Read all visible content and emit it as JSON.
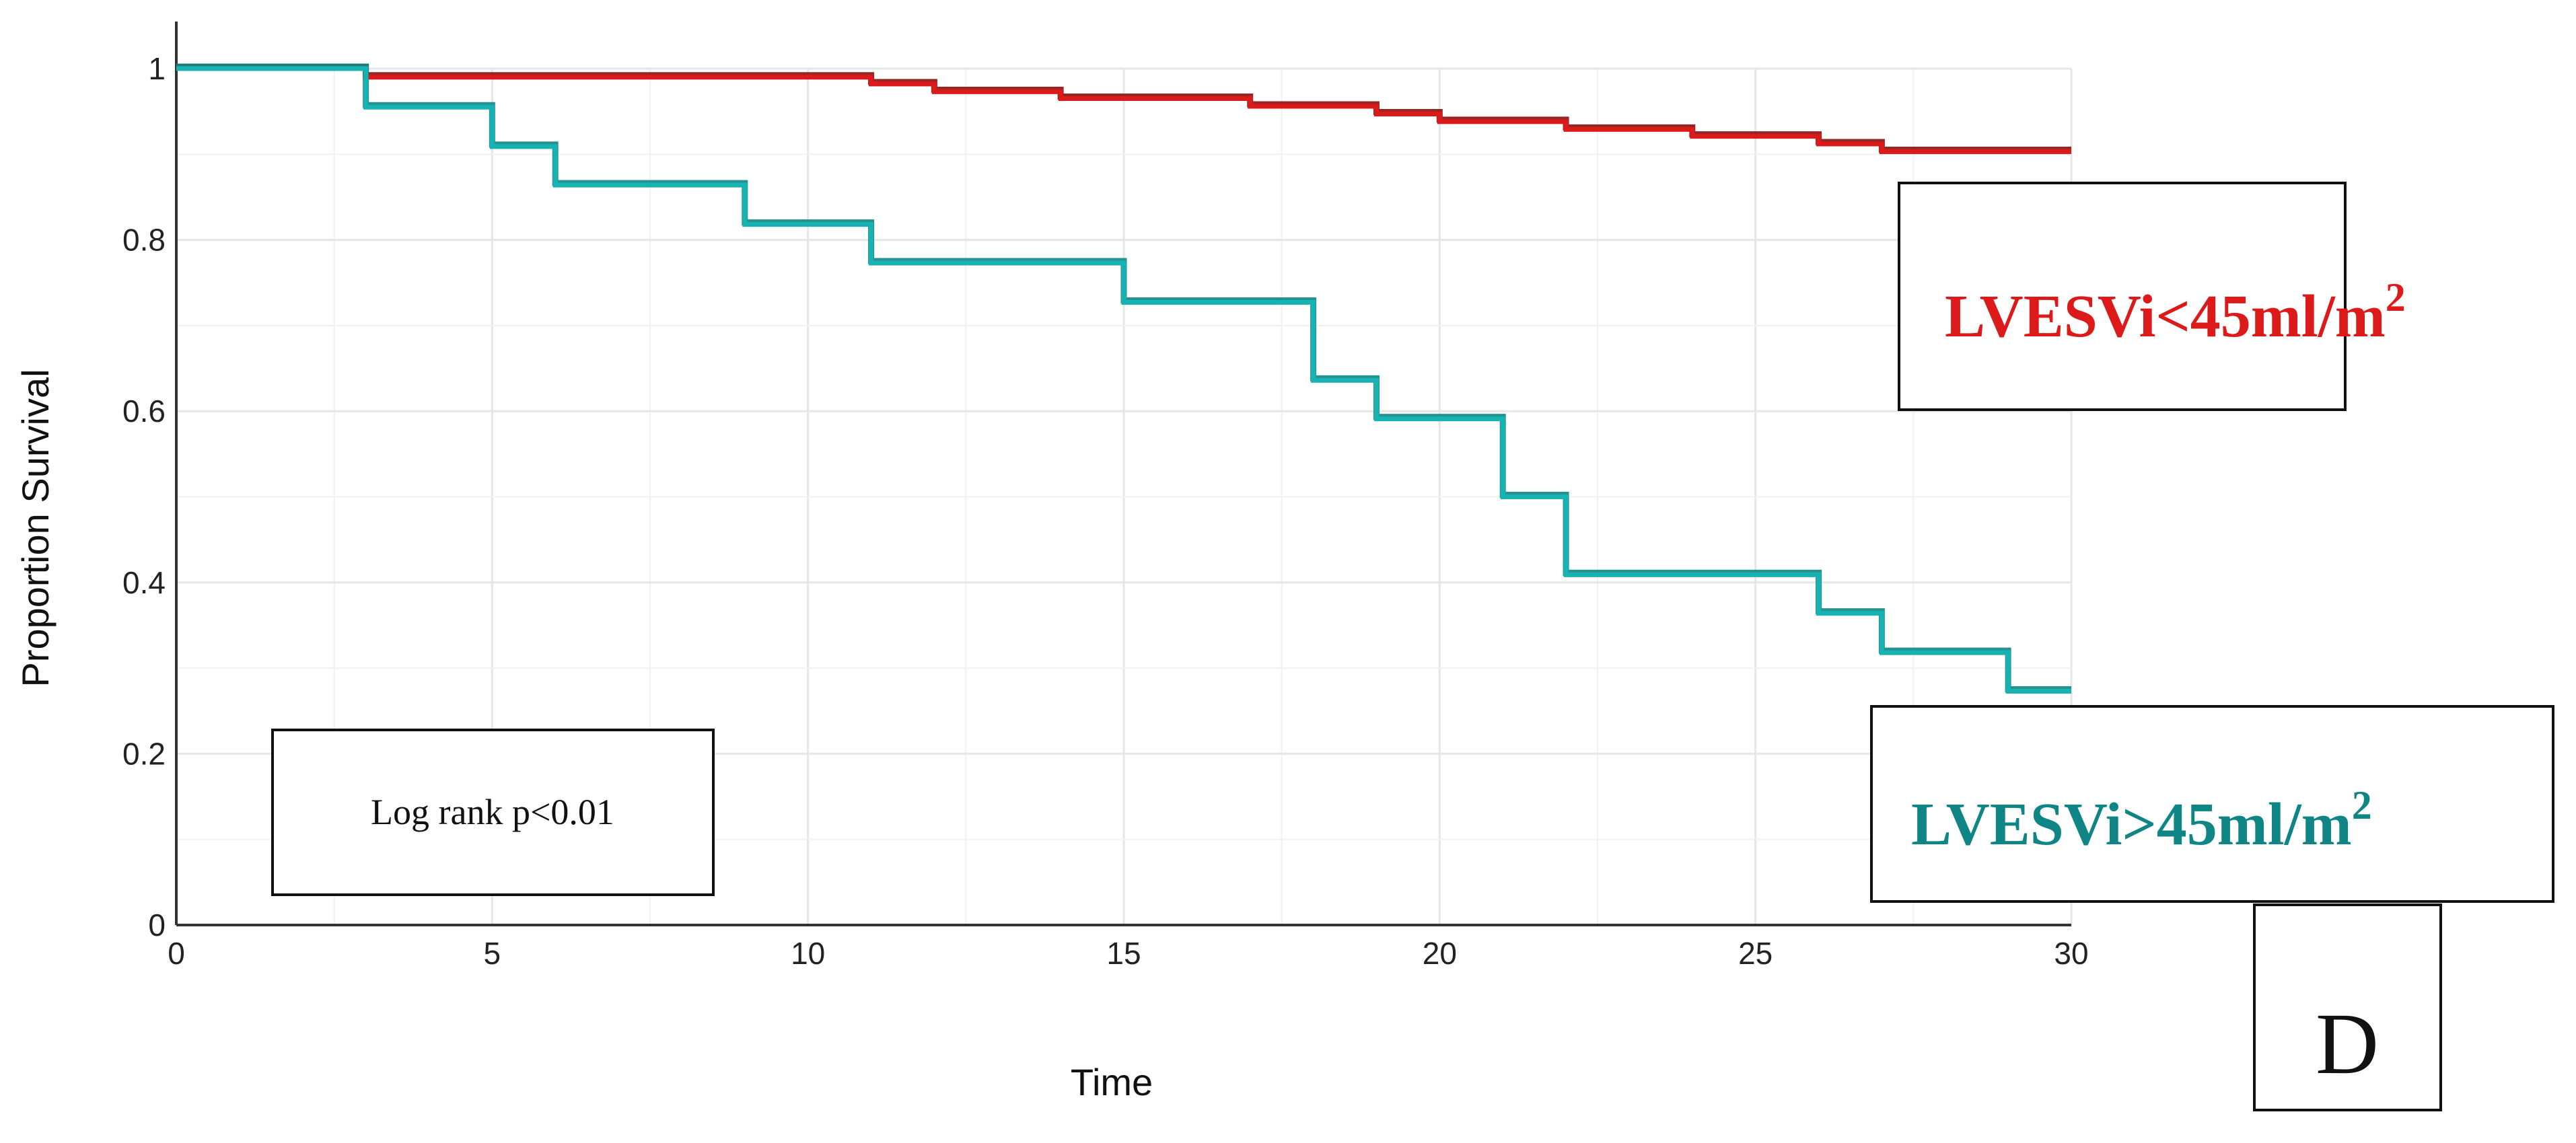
{
  "chart_data": {
    "type": "line",
    "step": true,
    "title": "",
    "xlabel": "Time",
    "ylabel": "Proportion Survival",
    "xlim": [
      0,
      30
    ],
    "ylim": [
      0,
      1
    ],
    "x_ticks": [
      0,
      5,
      10,
      15,
      20,
      25,
      30
    ],
    "y_ticks": [
      {
        "value": 0,
        "label": "0"
      },
      {
        "value": 0.2,
        "label": "0.2"
      },
      {
        "value": 0.4,
        "label": "0.4"
      },
      {
        "value": 0.6,
        "label": "0.6"
      },
      {
        "value": 0.8,
        "label": "0.8"
      },
      {
        "value": 1,
        "label": "1"
      }
    ],
    "grid": true,
    "series": [
      {
        "legend_main": "LVESVi<45ml/m",
        "legend_sup": "2",
        "color": "#dd1a1a",
        "shade_color": "#8b0f0f",
        "x": [
          0,
          3,
          11,
          12,
          14,
          17,
          19,
          20,
          22,
          24,
          26,
          27,
          30
        ],
        "y": [
          1.0,
          0.99,
          0.982,
          0.973,
          0.965,
          0.956,
          0.947,
          0.938,
          0.929,
          0.921,
          0.912,
          0.903,
          0.903
        ]
      },
      {
        "legend_main": "LVESVi>45ml/m",
        "legend_sup": "2",
        "color": "#17b3b3",
        "shade_color": "#0f8585",
        "x": [
          0,
          3,
          5,
          6,
          9,
          11,
          15,
          18,
          19,
          21,
          22,
          26,
          27,
          29,
          30
        ],
        "y": [
          1.0,
          0.955,
          0.909,
          0.864,
          0.818,
          0.773,
          0.727,
          0.636,
          0.591,
          0.5,
          0.409,
          0.364,
          0.318,
          0.273,
          0.273
        ]
      }
    ],
    "annotations": [
      {
        "text": "Log rank p<0.01"
      }
    ],
    "panel_label": "D"
  }
}
